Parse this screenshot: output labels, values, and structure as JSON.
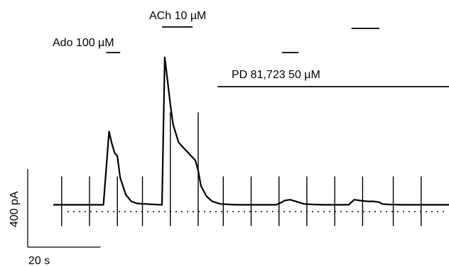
{
  "chart_data": {
    "type": "line",
    "title": "",
    "xlabel": "",
    "ylabel": "",
    "scale_bar": {
      "time_label": "20 s",
      "time_value_s": 20,
      "current_label": "400 pA",
      "current_value_pA": 400
    },
    "drug_applications": [
      {
        "label": "Ado 100 µM",
        "start_s": 19,
        "end_s": 24
      },
      {
        "label": "ACh 10 µM",
        "start_s": 39,
        "end_s": 50
      },
      {
        "label": "",
        "start_s": 82,
        "end_s": 88
      },
      {
        "label": "",
        "start_s": 107,
        "end_s": 117
      },
      {
        "label": "PD 81,723 50 µM",
        "start_s": 59,
        "end_s": 142
      }
    ],
    "zero_current_pA": 0,
    "baseline_pA": 40,
    "series": [
      {
        "x": [
          0,
          18,
          20,
          21,
          22,
          23,
          24,
          26,
          28,
          30,
          33,
          36,
          39,
          40,
          41,
          42,
          43,
          45,
          47,
          49,
          51,
          52,
          53,
          55,
          56,
          57,
          60,
          63,
          66,
          70,
          75,
          80,
          82,
          83,
          85,
          86,
          87,
          88,
          90,
          93,
          97,
          100,
          104,
          106,
          107,
          108,
          110,
          113,
          115,
          117,
          118,
          120,
          125,
          130,
          142
        ],
        "y": [
          40,
          40,
          470,
          400,
          345,
          325,
          200,
          100,
          60,
          48,
          45,
          42,
          40,
          905,
          770,
          630,
          510,
          405,
          370,
          335,
          300,
          240,
          150,
          90,
          75,
          60,
          45,
          42,
          40,
          40,
          40,
          40,
          55,
          65,
          70,
          65,
          60,
          55,
          45,
          42,
          40,
          40,
          40,
          40,
          55,
          70,
          65,
          60,
          60,
          55,
          45,
          42,
          40,
          40,
          40
        ]
      }
    ],
    "stimulus_artifact_times_s": [
      3,
      13,
      23,
      32,
      42,
      52,
      61,
      71,
      81,
      91,
      101,
      111,
      122,
      132
    ],
    "xlim": [
      0,
      142
    ],
    "ylim": [
      -150,
      1000
    ]
  },
  "labels": {
    "ado": "Ado 100 µM",
    "ach": "ACh 10 µM",
    "pd": "PD 81,723 50 µM",
    "time_scale": "20 s",
    "current_scale": "400 pA"
  }
}
